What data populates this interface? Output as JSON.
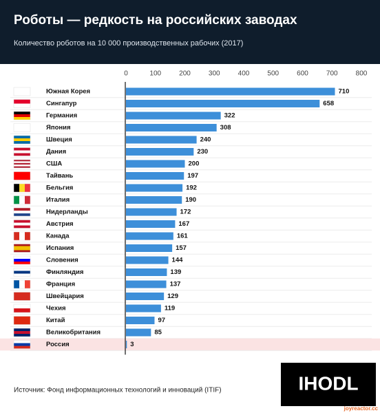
{
  "chart_data": {
    "type": "barh",
    "title": "Роботы — редкость на российских заводах",
    "subtitle": "Количество роботов на 10 000 производственных рабочих (2017)",
    "categories": [
      "Южная Корея",
      "Сингапур",
      "Германия",
      "Япония",
      "Швеция",
      "Дания",
      "США",
      "Тайвань",
      "Бельгия",
      "Италия",
      "Нидерланды",
      "Австрия",
      "Канада",
      "Испания",
      "Словения",
      "Финляндия",
      "Франция",
      "Швейцария",
      "Чехия",
      "Китай",
      "Великобритания",
      "Россия"
    ],
    "values": [
      710,
      658,
      322,
      308,
      240,
      230,
      200,
      197,
      192,
      190,
      172,
      167,
      161,
      157,
      144,
      139,
      137,
      129,
      119,
      97,
      85,
      3
    ],
    "color": "#3d8fd9",
    "highlight": "Россия",
    "highlight_color": "#fbe3e3",
    "xlim": [
      0,
      800
    ],
    "xticks": [
      0,
      100,
      200,
      300,
      400,
      500,
      600,
      700,
      800
    ],
    "source": "Источник: Фонд информационных технологий и инноваций (ITIF)",
    "logo": "IHODL",
    "watermark": "joyreactor.cc"
  }
}
